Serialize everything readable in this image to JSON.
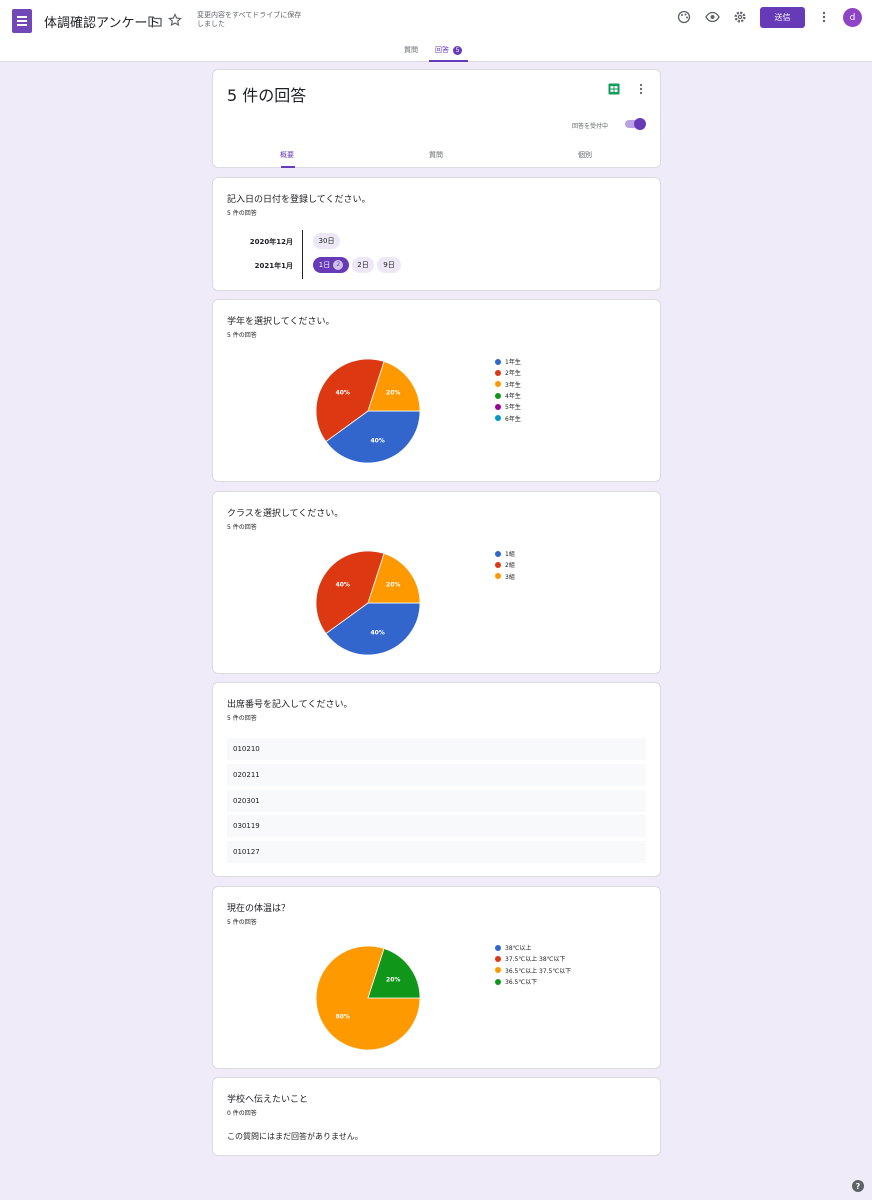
{
  "header": {
    "doc_title": "体調確認アンケート",
    "save_status": "変更内容をすべてドライブに保存しました",
    "send_label": "送信",
    "avatar_letter": "d",
    "tabs": [
      {
        "label": "質問"
      },
      {
        "label": "回答",
        "badge": "5"
      }
    ]
  },
  "summary": {
    "title": "5 件の回答",
    "accepting_label": "回答を受付中",
    "tabs": [
      {
        "label": "概要"
      },
      {
        "label": "質問"
      },
      {
        "label": "個別"
      }
    ]
  },
  "questions": {
    "date": {
      "title": "記入日の日付を登録してください。",
      "count": "5 件の回答",
      "groups": [
        {
          "month": "2020年12月",
          "days": [
            {
              "label": "30日"
            }
          ]
        },
        {
          "month": "2021年1月",
          "days": [
            {
              "label": "1日",
              "count": "2"
            },
            {
              "label": "2日"
            },
            {
              "label": "9日"
            }
          ]
        }
      ]
    },
    "grade": {
      "title": "学年を選択してください。",
      "count": "5 件の回答"
    },
    "class": {
      "title": "クラスを選択してください。",
      "count": "5 件の回答"
    },
    "seat": {
      "title": "出席番号を記入してください。",
      "count": "5 件の回答",
      "responses": [
        "010210",
        "020211",
        "020301",
        "030119",
        "010127"
      ]
    },
    "temp": {
      "title": "現在の体温は？",
      "count": "5 件の回答"
    },
    "message": {
      "title": "学校へ伝えたいこと",
      "count": "0 件の回答",
      "empty_text": "この質問にはまだ回答がありません。"
    }
  },
  "chart_data": [
    {
      "type": "pie",
      "categories": [
        "1年生",
        "2年生",
        "3年生",
        "4年生",
        "5年生",
        "6年生"
      ],
      "values": [
        40,
        40,
        20,
        0,
        0,
        0
      ],
      "colors": [
        "#3366cc",
        "#dc3912",
        "#ff9900",
        "#109618",
        "#990099",
        "#0099c6"
      ],
      "value_labels": [
        "40%",
        "40%",
        "20%",
        "",
        "",
        ""
      ],
      "legend_position": "right"
    },
    {
      "type": "pie",
      "categories": [
        "1組",
        "2組",
        "3組"
      ],
      "values": [
        40,
        40,
        20
      ],
      "colors": [
        "#3366cc",
        "#dc3912",
        "#ff9900"
      ],
      "value_labels": [
        "40%",
        "40%",
        "20%"
      ],
      "legend_position": "right"
    },
    {
      "type": "pie",
      "categories": [
        "38℃以上",
        "37.5℃以上 38℃以下",
        "36.5℃以上 37.5℃以下",
        "36.5℃以下"
      ],
      "values": [
        0,
        0,
        80,
        20
      ],
      "colors": [
        "#3366cc",
        "#dc3912",
        "#ff9900",
        "#109618"
      ],
      "value_labels": [
        "",
        "",
        "80%",
        "20%"
      ],
      "legend_position": "right"
    }
  ]
}
